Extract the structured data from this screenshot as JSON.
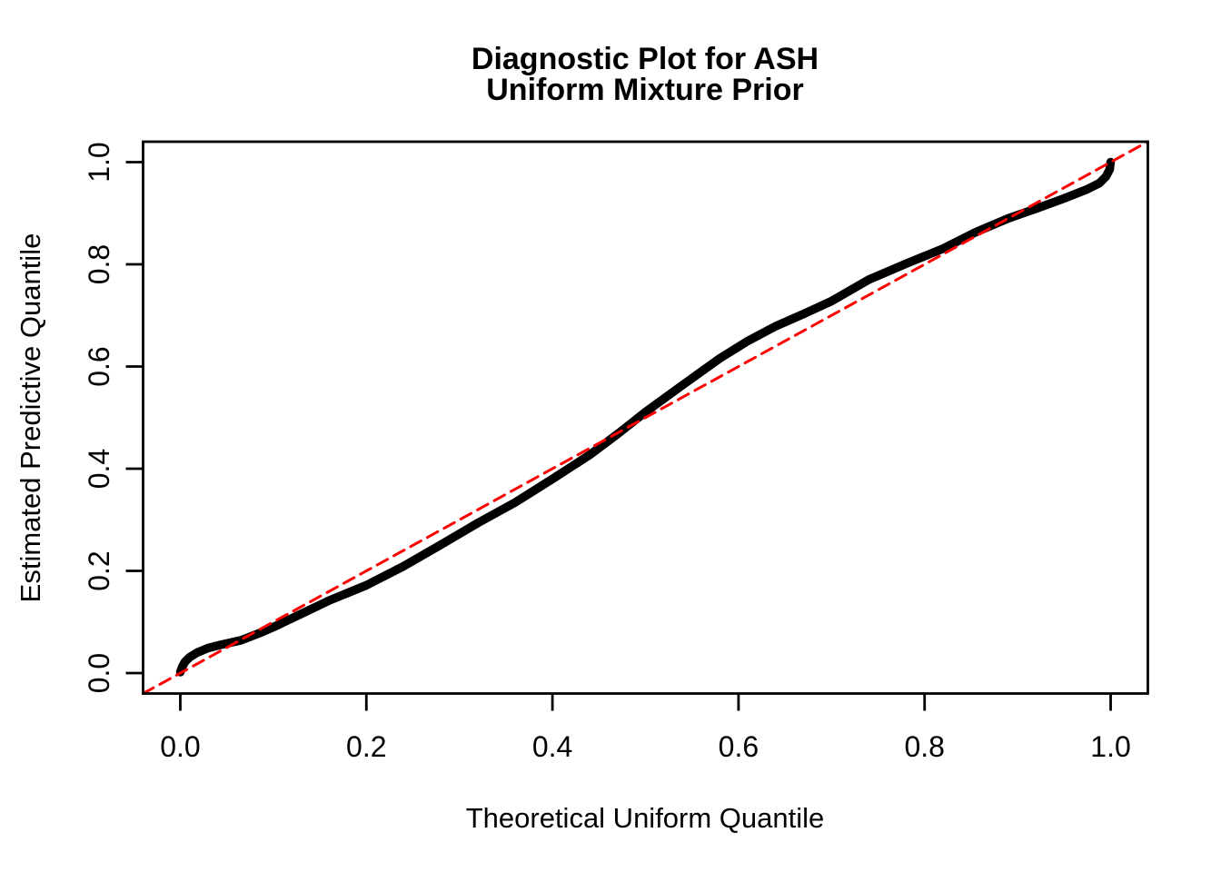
{
  "title": {
    "line1": "Diagnostic Plot for ASH",
    "line2": "Uniform Mixture Prior"
  },
  "axes": {
    "xlabel": "Theoretical Uniform Quantile",
    "ylabel": "Estimated Predictive Quantile",
    "x_ticks": [
      "0.0",
      "0.2",
      "0.4",
      "0.6",
      "0.8",
      "1.0"
    ],
    "y_ticks": [
      "0.0",
      "0.2",
      "0.4",
      "0.6",
      "0.8",
      "1.0"
    ]
  },
  "colors": {
    "background": "#FFFFFF",
    "frame": "#000000",
    "text": "#000000",
    "curve": "#000000",
    "reference_line": "#FF0000"
  },
  "chart_data": {
    "type": "line",
    "title": "Diagnostic Plot for ASH\nUniform Mixture Prior",
    "xlabel": "Theoretical Uniform Quantile",
    "ylabel": "Estimated Predictive Quantile",
    "xlim": [
      -0.04,
      1.04
    ],
    "ylim": [
      -0.04,
      1.04
    ],
    "grid": false,
    "legend": null,
    "x_tick_values": [
      0.0,
      0.2,
      0.4,
      0.6,
      0.8,
      1.0
    ],
    "y_tick_values": [
      0.0,
      0.2,
      0.4,
      0.6,
      0.8,
      1.0
    ],
    "series": [
      {
        "name": "estimated-predictive-quantile-curve",
        "color": "#000000",
        "style": "solid",
        "points": [
          [
            0.0,
            0.002
          ],
          [
            0.002,
            0.012
          ],
          [
            0.005,
            0.022
          ],
          [
            0.01,
            0.031
          ],
          [
            0.018,
            0.04
          ],
          [
            0.03,
            0.049
          ],
          [
            0.045,
            0.056
          ],
          [
            0.065,
            0.064
          ],
          [
            0.085,
            0.078
          ],
          [
            0.1,
            0.09
          ],
          [
            0.13,
            0.116
          ],
          [
            0.16,
            0.142
          ],
          [
            0.2,
            0.172
          ],
          [
            0.24,
            0.209
          ],
          [
            0.28,
            0.251
          ],
          [
            0.32,
            0.294
          ],
          [
            0.36,
            0.334
          ],
          [
            0.4,
            0.38
          ],
          [
            0.44,
            0.427
          ],
          [
            0.47,
            0.468
          ],
          [
            0.5,
            0.511
          ],
          [
            0.54,
            0.564
          ],
          [
            0.58,
            0.616
          ],
          [
            0.61,
            0.65
          ],
          [
            0.64,
            0.679
          ],
          [
            0.67,
            0.703
          ],
          [
            0.7,
            0.728
          ],
          [
            0.74,
            0.77
          ],
          [
            0.78,
            0.801
          ],
          [
            0.82,
            0.831
          ],
          [
            0.855,
            0.863
          ],
          [
            0.89,
            0.89
          ],
          [
            0.92,
            0.909
          ],
          [
            0.95,
            0.929
          ],
          [
            0.975,
            0.947
          ],
          [
            0.988,
            0.959
          ],
          [
            0.995,
            0.972
          ],
          [
            0.999,
            0.986
          ],
          [
            1.0,
            1.0
          ]
        ]
      },
      {
        "name": "identity-reference-line",
        "color": "#FF0000",
        "style": "dashed",
        "points": [
          [
            -0.04,
            -0.04
          ],
          [
            1.04,
            1.04
          ]
        ]
      }
    ]
  }
}
